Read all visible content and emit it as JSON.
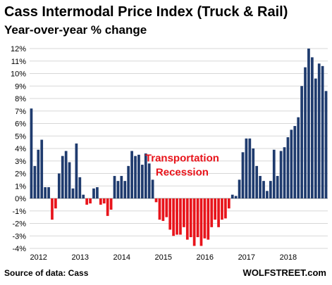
{
  "chart_data": {
    "type": "bar",
    "title": "Cass Intermodal Price Index (Truck & Rail)",
    "subtitle": "Year-over-year % change",
    "ylabel": "",
    "xlabel": "",
    "ylim": [
      -4,
      12
    ],
    "y_ticks": [
      "12%",
      "11%",
      "10%",
      "9%",
      "8%",
      "7%",
      "6%",
      "5%",
      "4%",
      "3%",
      "2%",
      "1%",
      "0%",
      "-1%",
      "-2%",
      "-3%",
      "-4%"
    ],
    "y_tick_values": [
      12,
      11,
      10,
      9,
      8,
      7,
      6,
      5,
      4,
      3,
      2,
      1,
      0,
      -1,
      -2,
      -3,
      -4
    ],
    "x_ticks": [
      "2012",
      "2013",
      "2014",
      "2015",
      "2016",
      "2017",
      "2018"
    ],
    "x_tick_index": [
      0,
      12,
      24,
      36,
      48,
      60,
      72
    ],
    "grid": true,
    "colors": {
      "positive": "#1f3b6e",
      "negative": "#e8141b",
      "grid": "#d7d7d7"
    },
    "annotation": [
      "Transportation",
      "Recession"
    ],
    "values": [
      7.2,
      2.6,
      3.9,
      4.7,
      0.9,
      0.9,
      -1.7,
      -0.8,
      2.0,
      3.4,
      3.8,
      2.9,
      0.8,
      4.4,
      1.7,
      0.3,
      -0.5,
      -0.4,
      0.8,
      0.9,
      -0.5,
      -0.4,
      -1.4,
      -0.9,
      1.8,
      1.4,
      1.8,
      1.4,
      2.6,
      3.8,
      3.4,
      3.5,
      2.7,
      3.6,
      2.8,
      1.5,
      -0.3,
      -1.7,
      -1.8,
      -1.5,
      -2.5,
      -3.0,
      -2.9,
      -2.9,
      -2.3,
      -3.3,
      -3.1,
      -3.8,
      -3.1,
      -3.8,
      -3.2,
      -3.3,
      -2.3,
      -1.7,
      -2.3,
      -1.7,
      -1.6,
      -0.8,
      0.3,
      0.2,
      1.5,
      3.7,
      4.8,
      4.8,
      4.0,
      2.6,
      1.8,
      1.4,
      0.6,
      1.4,
      3.9,
      1.8,
      3.8,
      4.1,
      4.9,
      5.5,
      5.8,
      6.5,
      9.0,
      10.5,
      12.0,
      11.3,
      9.6,
      10.8,
      10.6,
      8.6
    ]
  },
  "footer": {
    "source": "Source of data: Cass",
    "brand": "WOLFSTREET.com"
  }
}
